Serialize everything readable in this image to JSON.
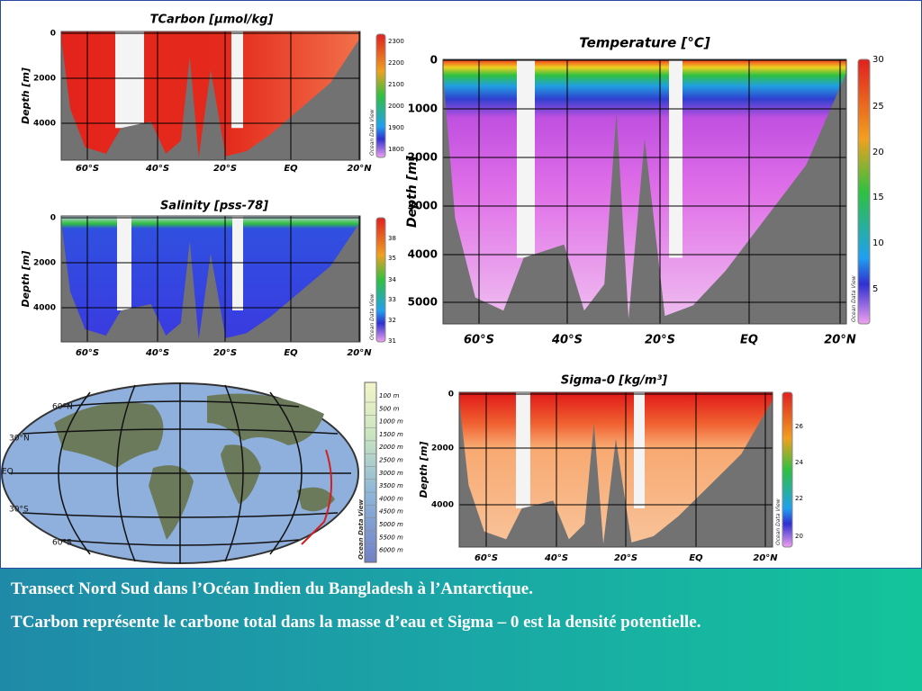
{
  "panels": [
    {
      "title": "TCarbon [µmol/kg]",
      "y_label": "Depth [m]",
      "y_ticks": [
        "0",
        "2000",
        "4000"
      ],
      "x_ticks": [
        "60°S",
        "40°S",
        "20°S",
        "EQ",
        "20°N"
      ],
      "colorbar_ticks": [
        "2300",
        "2200",
        "2100",
        "2000",
        "1900",
        "1800"
      ],
      "watermark": "Ocean Data View"
    },
    {
      "title": "Salinity [pss-78]",
      "y_label": "Depth [m]",
      "y_ticks": [
        "0",
        "2000",
        "4000"
      ],
      "x_ticks": [
        "60°S",
        "40°S",
        "20°S",
        "EQ",
        "20°N"
      ],
      "colorbar_ticks": [
        "38",
        "35",
        "34",
        "33",
        "32",
        "31"
      ],
      "watermark": "Ocean Data View"
    },
    {
      "title": "Temperature [°C]",
      "y_label": "Depth [m]",
      "y_ticks": [
        "0",
        "1000",
        "2000",
        "3000",
        "4000",
        "5000"
      ],
      "x_ticks": [
        "60°S",
        "40°S",
        "20°S",
        "EQ",
        "20°N"
      ],
      "colorbar_ticks": [
        "30",
        "25",
        "20",
        "15",
        "10",
        "5"
      ],
      "watermark": "Ocean Data View"
    },
    {
      "title": "Sigma-0 [kg/m³]",
      "y_label": "Depth [m]",
      "y_ticks": [
        "0",
        "2000",
        "4000"
      ],
      "x_ticks": [
        "60°S",
        "40°S",
        "20°S",
        "EQ",
        "20°N"
      ],
      "colorbar_ticks": [
        "26",
        "24",
        "22",
        "20"
      ],
      "watermark": "Ocean Data View"
    }
  ],
  "map": {
    "lat_labels": [
      "60°N",
      "30°N",
      "EQ",
      "30°S",
      "60°S"
    ],
    "depth_legend": [
      "100 m",
      "500 m",
      "1000 m",
      "1500 m",
      "2000 m",
      "2500 m",
      "3000 m",
      "3500 m",
      "4000 m",
      "4500 m",
      "5000 m",
      "5500 m",
      "6000 m"
    ],
    "watermark": "Ocean Data View"
  },
  "caption": [
    "Transect Nord Sud dans l’Océan Indien du Bangladesh à l’Antarctique.",
    "TCarbon représente le carbone total dans la masse d’eau et Sigma – 0 est la densité potentielle."
  ]
}
